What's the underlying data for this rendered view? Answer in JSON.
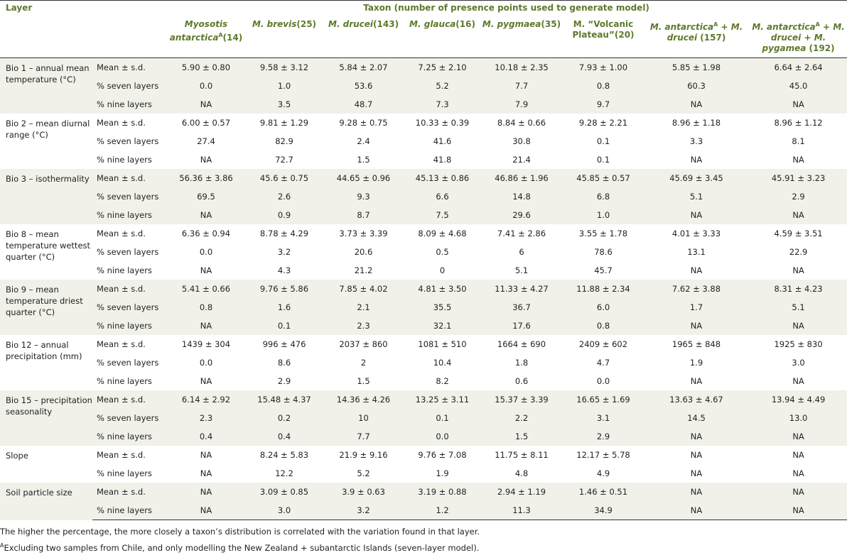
{
  "header": {
    "layer": "Layer",
    "taxon": "Taxon (number of presence points used to generate model)"
  },
  "columns": [
    [
      {
        "text": "Myosotis antarctica",
        "style": "italic"
      },
      {
        "text": "A",
        "style": "sup"
      },
      {
        "text": "(14)",
        "style": "plain"
      }
    ],
    [
      {
        "text": "M. brevis",
        "style": "italic"
      },
      {
        "text": "(25)",
        "style": "plain"
      }
    ],
    [
      {
        "text": "M. drucei",
        "style": "italic"
      },
      {
        "text": "(143)",
        "style": "plain"
      }
    ],
    [
      {
        "text": "M. glauca",
        "style": "italic"
      },
      {
        "text": "(16)",
        "style": "plain"
      }
    ],
    [
      {
        "text": "M. pygmaea",
        "style": "italic"
      },
      {
        "text": "(35)",
        "style": "plain"
      }
    ],
    [
      {
        "text": "M. “Volcanic Plateau”",
        "style": "plain"
      },
      {
        "text": "(20)",
        "style": "plain"
      }
    ],
    [
      {
        "text": "M. antarctica",
        "style": "italic"
      },
      {
        "text": "A",
        "style": "sup"
      },
      {
        "text": " + ",
        "style": "plain"
      },
      {
        "text": "M. drucei",
        "style": "italic"
      },
      {
        "text": " (157)",
        "style": "plain"
      }
    ],
    [
      {
        "text": "M. antarctica",
        "style": "italic"
      },
      {
        "text": "A",
        "style": "sup"
      },
      {
        "text": " + ",
        "style": "plain"
      },
      {
        "text": "M. drucei",
        "style": "italic"
      },
      {
        "text": " + ",
        "style": "plain"
      },
      {
        "text": "M. pygamea",
        "style": "italic"
      },
      {
        "text": " (192)",
        "style": "plain"
      }
    ]
  ],
  "groups": [
    {
      "layer": "Bio 1 – annual mean temperature (°C)",
      "rows": [
        [
          "Mean ± s.d.",
          "5.90 ± 0.80",
          "9.58 ± 3.12",
          "5.84 ± 2.07",
          "7.25 ± 2.10",
          "10.18 ± 2.35",
          "7.93 ± 1.00",
          "5.85 ± 1.98",
          "6.64 ± 2.64"
        ],
        [
          "% seven layers",
          "0.0",
          "1.0",
          "53.6",
          "5.2",
          "7.7",
          "0.8",
          "60.3",
          "45.0"
        ],
        [
          "% nine layers",
          "NA",
          "3.5",
          "48.7",
          "7.3",
          "7.9",
          "9.7",
          "NA",
          "NA"
        ]
      ]
    },
    {
      "layer": "Bio 2 – mean diurnal range (°C)",
      "rows": [
        [
          "Mean ± s.d.",
          "6.00 ± 0.57",
          "9.81 ± 1.29",
          "9.28 ± 0.75",
          "10.33 ± 0.39",
          "8.84 ± 0.66",
          "9.28 ± 2.21",
          "8.96 ± 1.18",
          "8.96 ± 1.12"
        ],
        [
          "% seven layers",
          "27.4",
          "82.9",
          "2.4",
          "41.6",
          "30.8",
          "0.1",
          "3.3",
          "8.1"
        ],
        [
          "% nine layers",
          "NA",
          "72.7",
          "1.5",
          "41.8",
          "21.4",
          "0.1",
          "NA",
          "NA"
        ]
      ]
    },
    {
      "layer": "Bio 3 – isothermality",
      "rows": [
        [
          "Mean ± s.d.",
          "56.36 ± 3.86",
          "45.6 ± 0.75",
          "44.65 ± 0.96",
          "45.13 ± 0.86",
          "46.86 ± 1.96",
          "45.85 ± 0.57",
          "45.69 ± 3.45",
          "45.91 ± 3.23"
        ],
        [
          "% seven layers",
          "69.5",
          "2.6",
          "9.3",
          "6.6",
          "14.8",
          "6.8",
          "5.1",
          "2.9"
        ],
        [
          "% nine layers",
          "NA",
          "0.9",
          "8.7",
          "7.5",
          "29.6",
          "1.0",
          "NA",
          "NA"
        ]
      ]
    },
    {
      "layer": "Bio 8 – mean temperature wettest quarter (°C)",
      "rows": [
        [
          "Mean ± s.d.",
          "6.36 ± 0.94",
          "8.78 ± 4.29",
          "3.73 ± 3.39",
          "8.09 ± 4.68",
          "7.41 ± 2.86",
          "3.55 ± 1.78",
          "4.01 ± 3.33",
          "4.59 ± 3.51"
        ],
        [
          "% seven layers",
          "0.0",
          "3.2",
          "20.6",
          "0.5",
          "6",
          "78.6",
          "13.1",
          "22.9"
        ],
        [
          "% nine layers",
          "NA",
          "4.3",
          "21.2",
          "0",
          "5.1",
          "45.7",
          "NA",
          "NA"
        ]
      ]
    },
    {
      "layer": "Bio 9 – mean temperature driest quarter (°C)",
      "rows": [
        [
          "Mean ± s.d.",
          "5.41 ± 0.66",
          "9.76 ± 5.86",
          "7.85 ± 4.02",
          "4.81 ± 3.50",
          "11.33 ± 4.27",
          "11.88 ± 2.34",
          "7.62 ± 3.88",
          "8.31 ± 4.23"
        ],
        [
          "% seven layers",
          "0.8",
          "1.6",
          "2.1",
          "35.5",
          "36.7",
          "6.0",
          "1.7",
          "5.1"
        ],
        [
          "% nine layers",
          "NA",
          "0.1",
          "2.3",
          "32.1",
          "17.6",
          "0.8",
          "NA",
          "NA"
        ]
      ]
    },
    {
      "layer": "Bio 12 – annual precipitation (mm)",
      "rows": [
        [
          "Mean ± s.d.",
          "1439 ± 304",
          "996 ± 476",
          "2037 ± 860",
          "1081 ± 510",
          "1664 ± 690",
          "2409 ± 602",
          "1965 ± 848",
          "1925 ± 830"
        ],
        [
          "% seven layers",
          "0.0",
          "8.6",
          "2",
          "10.4",
          "1.8",
          "4.7",
          "1.9",
          "3.0"
        ],
        [
          "% nine layers",
          "NA",
          "2.9",
          "1.5",
          "8.2",
          "0.6",
          "0.0",
          "NA",
          "NA"
        ]
      ]
    },
    {
      "layer": "Bio 15 – precipitation seasonality",
      "rows": [
        [
          "Mean ± s.d.",
          "6.14 ± 2.92",
          "15.48 ± 4.37",
          "14.36 ± 4.26",
          "13.25 ± 3.11",
          "15.37 ± 3.39",
          "16.65 ± 1.69",
          "13.63 ± 4.67",
          "13.94 ± 4.49"
        ],
        [
          "% seven layers",
          "2.3",
          "0.2",
          "10",
          "0.1",
          "2.2",
          "3.1",
          "14.5",
          "13.0"
        ],
        [
          "% nine layers",
          "0.4",
          "0.4",
          "7.7",
          "0.0",
          "1.5",
          "2.9",
          "NA",
          "NA"
        ]
      ]
    },
    {
      "layer": "Slope",
      "rows": [
        [
          "Mean ± s.d.",
          "NA",
          "8.24 ± 5.83",
          "21.9 ± 9.16",
          "9.76 ± 7.08",
          "11.75 ± 8.11",
          "12.17 ± 5.78",
          "NA",
          "NA"
        ],
        [
          "% nine layers",
          "NA",
          "12.2",
          "5.2",
          "1.9",
          "4.8",
          "4.9",
          "NA",
          "NA"
        ]
      ]
    },
    {
      "layer": "Soil particle size",
      "rows": [
        [
          "Mean ± s.d.",
          "NA",
          "3.09 ± 0.85",
          "3.9 ± 0.63",
          "3.19 ± 0.88",
          "2.94 ± 1.19",
          "1.46 ± 0.51",
          "NA",
          "NA"
        ],
        [
          "% nine layers",
          "NA",
          "3.0",
          "3.2",
          "1.2",
          "11.3",
          "34.9",
          "NA",
          "NA"
        ]
      ]
    }
  ],
  "notes": [
    {
      "text": "The higher the percentage, the more closely a taxon’s distribution is correlated with the variation found in that layer."
    },
    {
      "sup": "A",
      "text": "Excluding two samples from Chile, and only modelling the New Zealand + subantarctic Islands (seven-layer model)."
    }
  ]
}
